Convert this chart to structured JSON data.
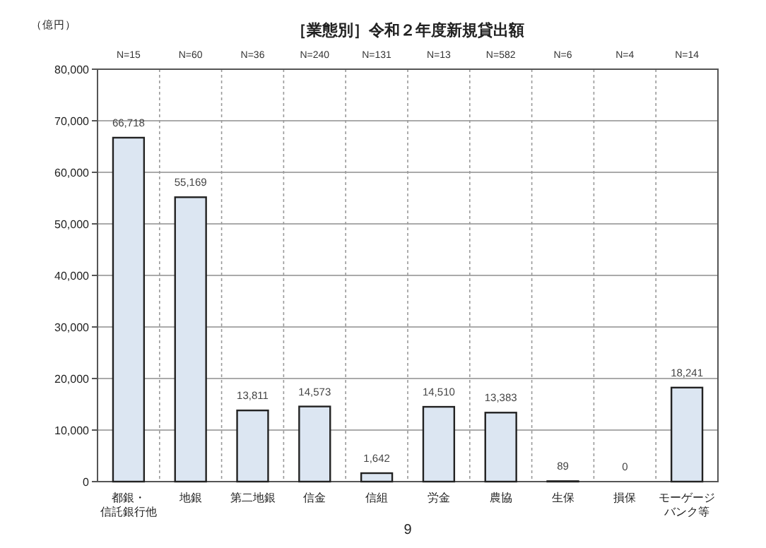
{
  "chart_data": {
    "type": "bar",
    "title": "［業態別］令和２年度新規貸出額",
    "ylabel": "（億円）",
    "categories": [
      "都銀・信託銀行他",
      "地銀",
      "第二地銀",
      "信金",
      "信組",
      "労金",
      "農協",
      "生保",
      "損保",
      "モーゲージバンク等"
    ],
    "values": [
      66718,
      55169,
      13811,
      14573,
      1642,
      14510,
      13383,
      89,
      0,
      18241
    ],
    "color": "#dce6f2",
    "ylim": [
      0,
      80000
    ],
    "yticks": [
      {
        "value": 0,
        "label": "0"
      },
      {
        "value": 10000,
        "label": "10,000"
      },
      {
        "value": 20000,
        "label": "20,000"
      },
      {
        "value": 30000,
        "label": "30,000"
      },
      {
        "value": 40000,
        "label": "40,000"
      },
      {
        "value": 50000,
        "label": "50,000"
      },
      {
        "value": 60000,
        "label": "60,000"
      },
      {
        "value": 70000,
        "label": "70,000"
      },
      {
        "value": 80000,
        "label": "80,000"
      }
    ],
    "value_labels": [
      "66,718",
      "55,169",
      "13,811",
      "14,573",
      "1,642",
      "14,510",
      "13,383",
      "89",
      "0",
      "18,241"
    ],
    "grid": true,
    "annotations": [
      "N=15",
      "N=60",
      "N=36",
      "N=240",
      "N=131",
      "N=13",
      "N=582",
      "N=6",
      "N=4",
      "N=14",
      "9"
    ]
  }
}
